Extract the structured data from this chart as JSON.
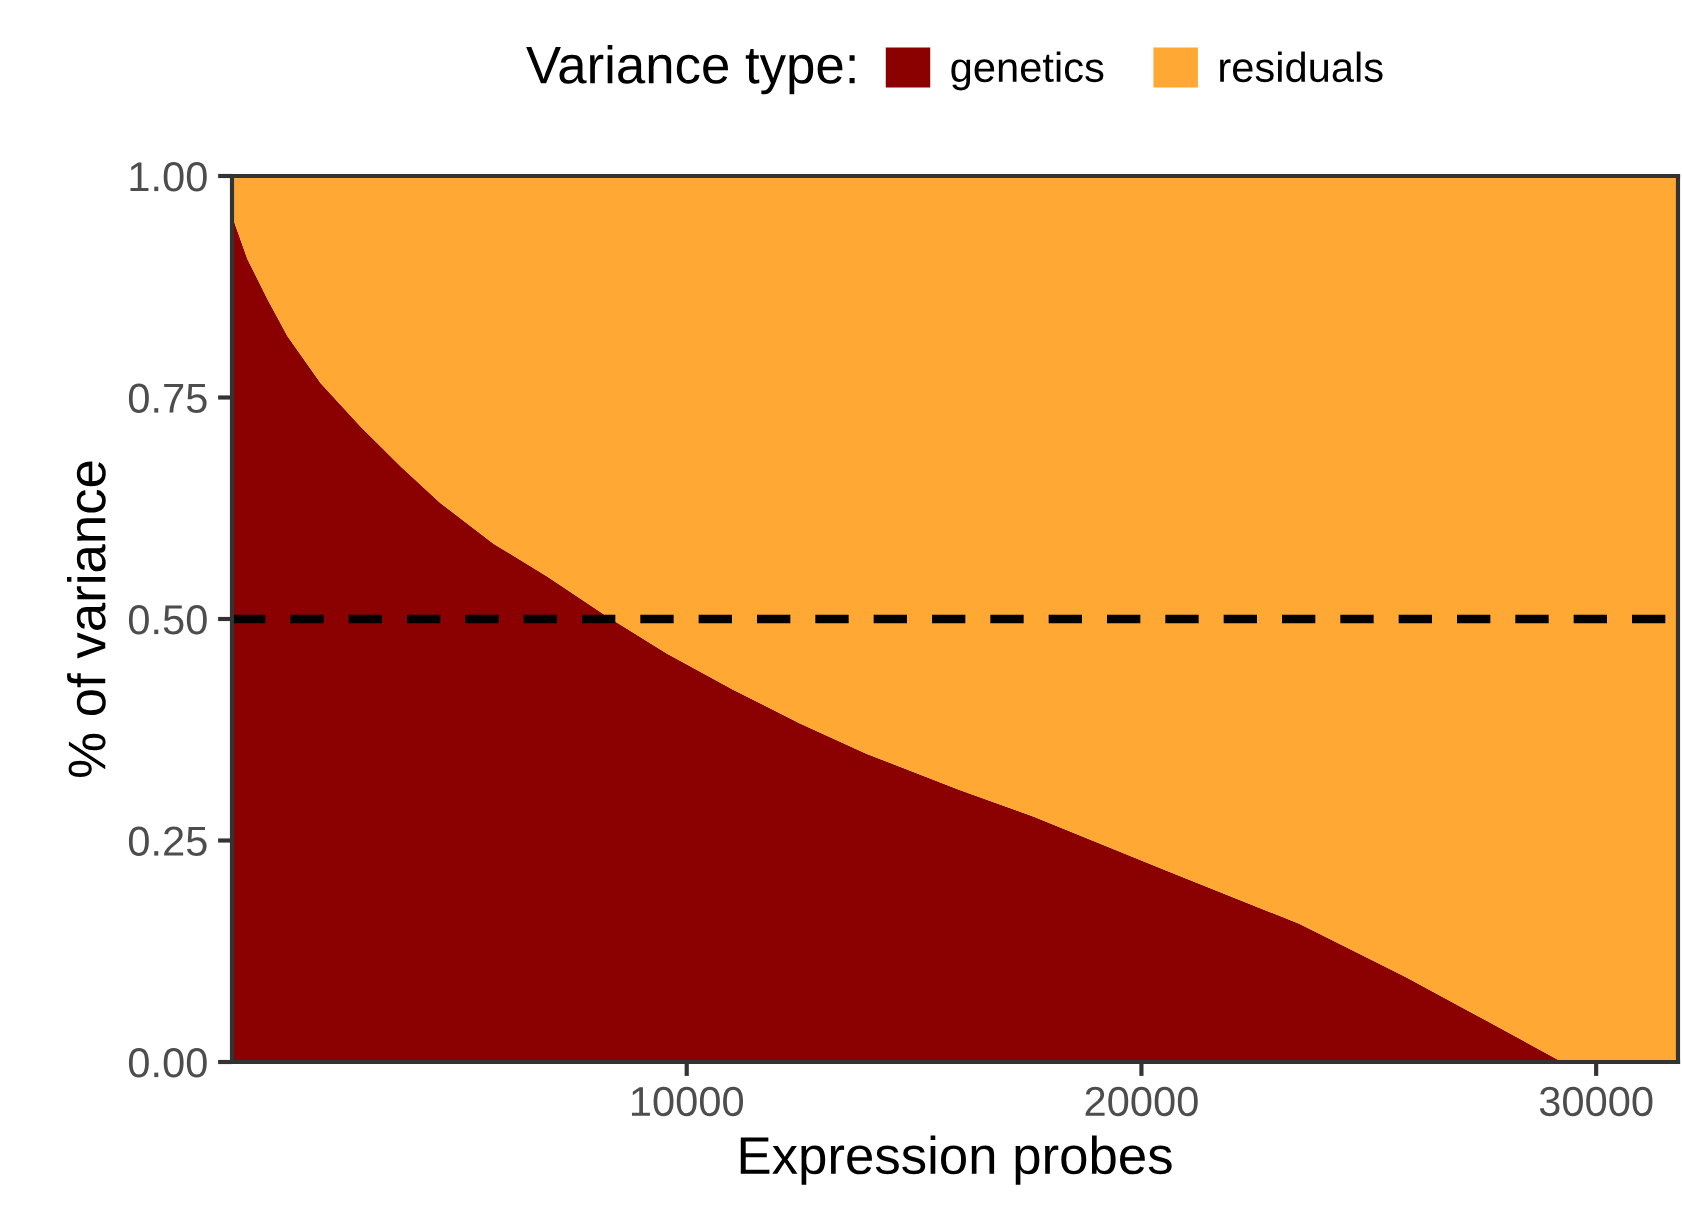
{
  "chart_data": {
    "type": "area",
    "stacked": true,
    "xlabel": "Expression probes",
    "ylabel": "% of variance",
    "legend_title": "Variance type:",
    "legend": "top",
    "grid": false,
    "x": [
      0,
      340,
      780,
      1220,
      1950,
      2830,
      3710,
      4580,
      5750,
      6930,
      8240,
      9560,
      11030,
      12490,
      13950,
      16000,
      17620,
      20540,
      23470,
      25810,
      27570,
      29250,
      31800
    ],
    "series": [
      {
        "name": "genetics",
        "color": "#8b0000",
        "values": [
          0.955,
          0.906,
          0.861,
          0.819,
          0.766,
          0.717,
          0.672,
          0.631,
          0.585,
          0.548,
          0.503,
          0.461,
          0.42,
          0.382,
          0.348,
          0.307,
          0.277,
          0.216,
          0.156,
          0.096,
          0.047,
          0,
          0
        ]
      },
      {
        "name": "residuals",
        "color": "#ffa833",
        "values": [
          0.045,
          0.094,
          0.139,
          0.181,
          0.234,
          0.283,
          0.328,
          0.369,
          0.415,
          0.452,
          0.497,
          0.539,
          0.58,
          0.618,
          0.652,
          0.693,
          0.723,
          0.784,
          0.844,
          0.904,
          0.953,
          1,
          1
        ]
      }
    ],
    "xlim": [
      0,
      31800
    ],
    "xticks": [
      10000,
      20000,
      30000
    ],
    "ylim": [
      0,
      1
    ],
    "yticks": [
      {
        "value": 0,
        "label": "0.00"
      },
      {
        "value": 0.25,
        "label": "0.25"
      },
      {
        "value": 0.5,
        "label": "0.50"
      },
      {
        "value": 0.75,
        "label": "0.75"
      },
      {
        "value": 1,
        "label": "1.00"
      }
    ],
    "ref_lines": [
      {
        "axis": "y",
        "value": 0.5,
        "color": "#000000",
        "line_style": "dashed"
      }
    ]
  }
}
